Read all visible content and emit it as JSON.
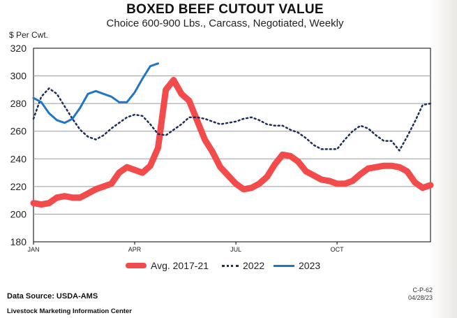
{
  "chart_data": {
    "type": "line",
    "title": "BOXED BEEF CUTOUT VALUE",
    "subtitle": "Choice 600-900 Lbs., Carcass, Negotiated, Weekly",
    "ylabel": "$ Per Cwt.",
    "ylim": [
      180,
      320
    ],
    "yticks": [
      180,
      200,
      220,
      240,
      260,
      280,
      300,
      320
    ],
    "xlim": [
      1,
      52
    ],
    "xticks": [
      {
        "label": "JAN",
        "week": 1
      },
      {
        "label": "APR",
        "week": 14
      },
      {
        "label": "JUL",
        "week": 27
      },
      {
        "label": "OCT",
        "week": 40
      }
    ],
    "grid": true,
    "legend_position": "bottom",
    "series": [
      {
        "name": "Avg. 2017-21",
        "color": "#f24b4b",
        "style": "thick",
        "x": [
          1,
          2,
          3,
          4,
          5,
          6,
          7,
          8,
          9,
          10,
          11,
          12,
          13,
          14,
          15,
          16,
          17,
          18,
          19,
          20,
          21,
          22,
          23,
          24,
          25,
          26,
          27,
          28,
          29,
          30,
          31,
          32,
          33,
          34,
          35,
          36,
          37,
          38,
          39,
          40,
          41,
          42,
          43,
          44,
          45,
          46,
          47,
          48,
          49,
          50,
          51,
          52
        ],
        "values": [
          208,
          207,
          208,
          212,
          213,
          212,
          212,
          215,
          218,
          220,
          222,
          230,
          234,
          232,
          230,
          235,
          248,
          290,
          297,
          287,
          282,
          268,
          254,
          245,
          234,
          228,
          222,
          218,
          219,
          222,
          227,
          236,
          243,
          242,
          238,
          231,
          228,
          225,
          224,
          222,
          222,
          224,
          229,
          233,
          234,
          235,
          235,
          234,
          231,
          223,
          219,
          221
        ]
      },
      {
        "name": "2022",
        "color": "#1f2d5a",
        "style": "dotted",
        "x": [
          1,
          2,
          3,
          4,
          5,
          6,
          7,
          8,
          9,
          10,
          11,
          12,
          13,
          14,
          15,
          16,
          17,
          18,
          19,
          20,
          21,
          22,
          23,
          24,
          25,
          26,
          27,
          28,
          29,
          30,
          31,
          32,
          33,
          34,
          35,
          36,
          37,
          38,
          39,
          40,
          41,
          42,
          43,
          44,
          45,
          46,
          47,
          48,
          49,
          50,
          51,
          52
        ],
        "values": [
          269,
          285,
          291,
          287,
          278,
          269,
          261,
          256,
          254,
          257,
          262,
          266,
          270,
          272,
          271,
          265,
          258,
          257,
          261,
          265,
          270,
          270,
          269,
          267,
          265,
          266,
          267,
          269,
          270,
          268,
          265,
          264,
          264,
          261,
          259,
          255,
          250,
          247,
          247,
          247,
          254,
          260,
          264,
          262,
          257,
          253,
          253,
          246,
          256,
          267,
          279,
          280
        ]
      },
      {
        "name": "2023",
        "color": "#1f77c4",
        "style": "solid",
        "x": [
          1,
          2,
          3,
          4,
          5,
          6,
          7,
          8,
          9,
          10,
          11,
          12,
          13,
          14,
          15,
          16,
          17
        ],
        "values": [
          284,
          281,
          273,
          268,
          266,
          269,
          277,
          287,
          289,
          287,
          285,
          281,
          281,
          288,
          298,
          307,
          309
        ]
      }
    ]
  },
  "footer": {
    "source": "Data Source:  USDA-AMS",
    "center": "Livestock Marketing Information Center",
    "code": "C-P-62",
    "date": "04/28/23"
  }
}
